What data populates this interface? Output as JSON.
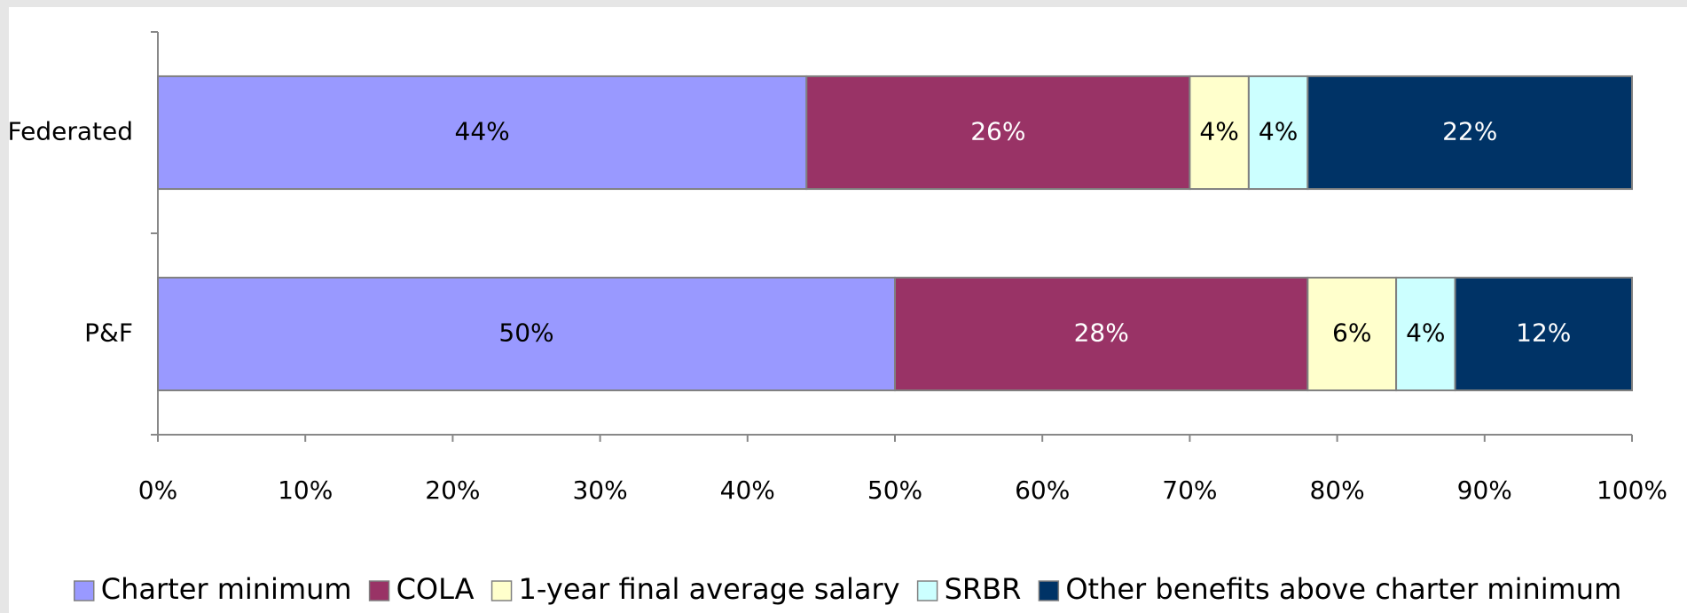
{
  "chart_data": {
    "type": "stacked-bar-horizontal",
    "categories": [
      "Federated",
      "P&F"
    ],
    "series": [
      {
        "name": "Charter minimum",
        "color": "#9999ff",
        "values": [
          44,
          50
        ],
        "value_labels": [
          "44%",
          "50%"
        ]
      },
      {
        "name": "COLA",
        "color": "#993366",
        "values": [
          26,
          28
        ],
        "value_labels": [
          "26%",
          "28%"
        ]
      },
      {
        "name": "1-year final average salary",
        "color": "#ffffcc",
        "values": [
          4,
          6
        ],
        "value_labels": [
          "4%",
          "6%"
        ]
      },
      {
        "name": "SRBR",
        "color": "#ccffff",
        "values": [
          4,
          4
        ],
        "value_labels": [
          "4%",
          "4%"
        ]
      },
      {
        "name": "Other benefits above charter minimum",
        "color": "#003366",
        "values": [
          22,
          12
        ],
        "value_labels": [
          "22%",
          "12%"
        ]
      }
    ],
    "xlim": [
      0,
      100
    ],
    "xticks": [
      {
        "value": 0,
        "label": "0%"
      },
      {
        "value": 10,
        "label": "10%"
      },
      {
        "value": 20,
        "label": "20%"
      },
      {
        "value": 30,
        "label": "30%"
      },
      {
        "value": 40,
        "label": "40%"
      },
      {
        "value": 50,
        "label": "50%"
      },
      {
        "value": 60,
        "label": "60%"
      },
      {
        "value": 70,
        "label": "70%"
      },
      {
        "value": 80,
        "label": "80%"
      },
      {
        "value": 90,
        "label": "90%"
      },
      {
        "value": 100,
        "label": "100%"
      }
    ],
    "legend": "bottom"
  }
}
